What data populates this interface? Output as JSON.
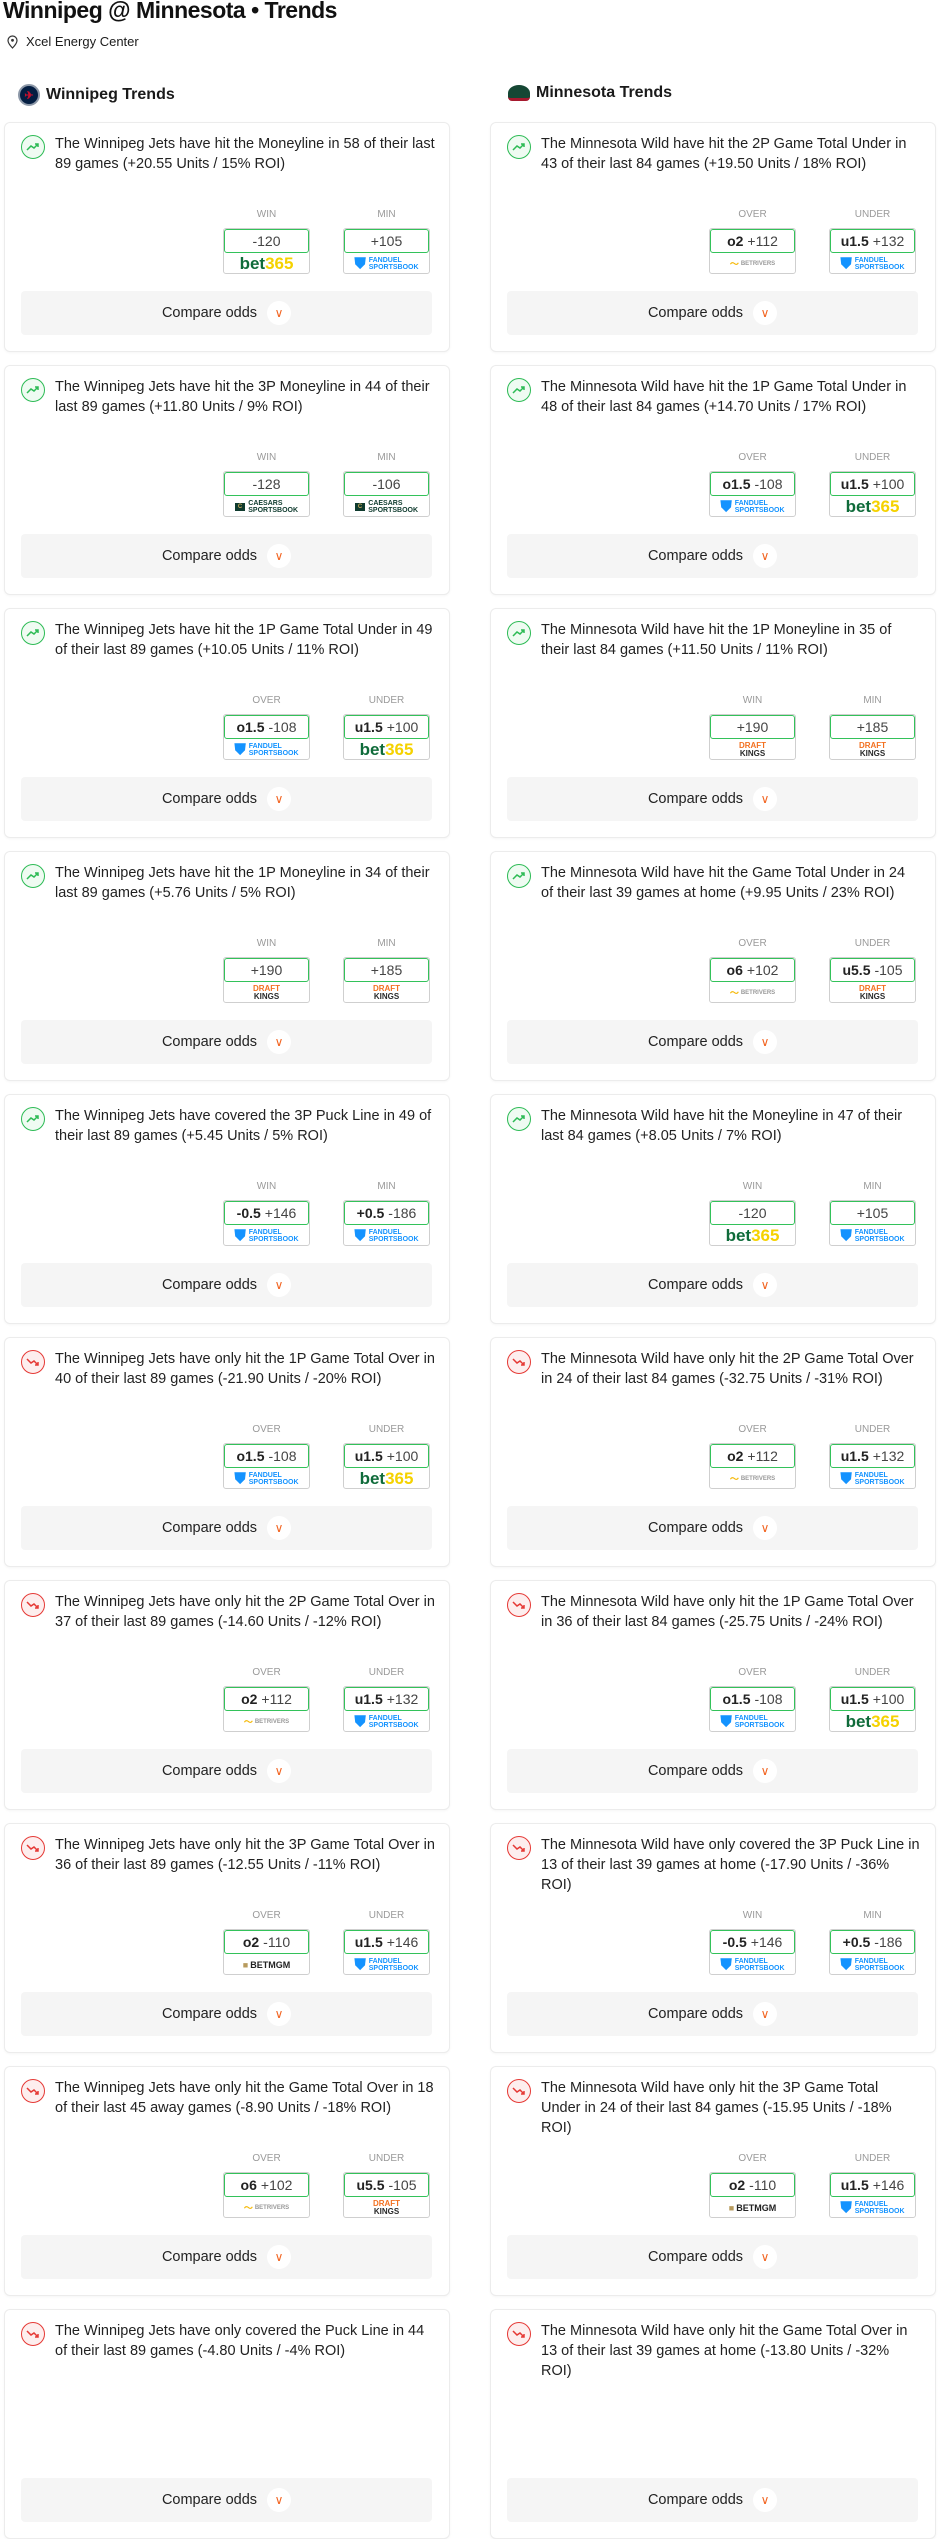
{
  "header": {
    "title": "Winnipeg @ Minnesota • Trends",
    "venue": "Xcel Energy Center"
  },
  "compare_label": "Compare odds",
  "colors": {
    "up": "#2dbb55",
    "down": "#e53935",
    "odds_border": "#33c25a",
    "chevron": "#f26522"
  },
  "columns": [
    {
      "title": "Winnipeg Trends",
      "logo": "winnipeg-jets-logo",
      "cards": [
        {
          "dir": "up",
          "text": "The Winnipeg Jets have hit the Moneyline in 58 of their last 89 games (+20.55 Units / 15% ROI)",
          "labels": [
            "WIN",
            "MIN"
          ],
          "odds": [
            {
              "line": "",
              "price": "-120",
              "book": "bet365"
            },
            {
              "line": "",
              "price": "+105",
              "book": "fanduel"
            }
          ]
        },
        {
          "dir": "up",
          "text": "The Winnipeg Jets have hit the 3P Moneyline in 44 of their last 89 games (+11.80 Units / 9% ROI)",
          "labels": [
            "WIN",
            "MIN"
          ],
          "odds": [
            {
              "line": "",
              "price": "-128",
              "book": "caesars"
            },
            {
              "line": "",
              "price": "-106",
              "book": "caesars"
            }
          ]
        },
        {
          "dir": "up",
          "text": "The Winnipeg Jets have hit the 1P Game Total Under in 49 of their last 89 games (+10.05 Units / 11% ROI)",
          "labels": [
            "OVER",
            "UNDER"
          ],
          "odds": [
            {
              "line": "o1.5",
              "price": "-108",
              "book": "fanduel"
            },
            {
              "line": "u1.5",
              "price": "+100",
              "book": "bet365"
            }
          ]
        },
        {
          "dir": "up",
          "text": "The Winnipeg Jets have hit the 1P Moneyline in 34 of their last 89 games (+5.76 Units / 5% ROI)",
          "labels": [
            "WIN",
            "MIN"
          ],
          "odds": [
            {
              "line": "",
              "price": "+190",
              "book": "draftkings"
            },
            {
              "line": "",
              "price": "+185",
              "book": "draftkings"
            }
          ]
        },
        {
          "dir": "up",
          "text": "The Winnipeg Jets have covered the 3P Puck Line in 49 of their last 89 games (+5.45 Units / 5% ROI)",
          "labels": [
            "WIN",
            "MIN"
          ],
          "odds": [
            {
              "line": "-0.5",
              "price": "+146",
              "book": "fanduel"
            },
            {
              "line": "+0.5",
              "price": "-186",
              "book": "fanduel"
            }
          ]
        },
        {
          "dir": "down",
          "text": "The Winnipeg Jets have only hit the 1P Game Total Over in 40 of their last 89 games (-21.90 Units / -20% ROI)",
          "labels": [
            "OVER",
            "UNDER"
          ],
          "odds": [
            {
              "line": "o1.5",
              "price": "-108",
              "book": "fanduel"
            },
            {
              "line": "u1.5",
              "price": "+100",
              "book": "bet365"
            }
          ]
        },
        {
          "dir": "down",
          "text": "The Winnipeg Jets have only hit the 2P Game Total Over in 37 of their last 89 games (-14.60 Units / -12% ROI)",
          "labels": [
            "OVER",
            "UNDER"
          ],
          "odds": [
            {
              "line": "o2",
              "price": "+112",
              "book": "betrivers"
            },
            {
              "line": "u1.5",
              "price": "+132",
              "book": "fanduel"
            }
          ]
        },
        {
          "dir": "down",
          "text": "The Winnipeg Jets have only hit the 3P Game Total Over in 36 of their last 89 games (-12.55 Units / -11% ROI)",
          "labels": [
            "OVER",
            "UNDER"
          ],
          "odds": [
            {
              "line": "o2",
              "price": "-110",
              "book": "betmgm"
            },
            {
              "line": "u1.5",
              "price": "+146",
              "book": "fanduel"
            }
          ]
        },
        {
          "dir": "down",
          "text": "The Winnipeg Jets have only hit the Game Total Over in 18 of their last 45 away games (-8.90 Units / -18% ROI)",
          "labels": [
            "OVER",
            "UNDER"
          ],
          "odds": [
            {
              "line": "o6",
              "price": "+102",
              "book": "betrivers"
            },
            {
              "line": "u5.5",
              "price": "-105",
              "book": "draftkings"
            }
          ]
        },
        {
          "dir": "down",
          "text": "The Winnipeg Jets have only covered the Puck Line in 44 of their last 89 games (-4.80 Units / -4% ROI)"
        }
      ]
    },
    {
      "title": "Minnesota Trends",
      "logo": "minnesota-wild-logo",
      "cards": [
        {
          "dir": "up",
          "text": "The Minnesota Wild have hit the 2P Game Total Under in 43 of their last 84 games (+19.50 Units / 18% ROI)",
          "labels": [
            "OVER",
            "UNDER"
          ],
          "odds": [
            {
              "line": "o2",
              "price": "+112",
              "book": "betrivers"
            },
            {
              "line": "u1.5",
              "price": "+132",
              "book": "fanduel"
            }
          ]
        },
        {
          "dir": "up",
          "text": "The Minnesota Wild have hit the 1P Game Total Under in 48 of their last 84 games (+14.70 Units / 17% ROI)",
          "labels": [
            "OVER",
            "UNDER"
          ],
          "odds": [
            {
              "line": "o1.5",
              "price": "-108",
              "book": "fanduel"
            },
            {
              "line": "u1.5",
              "price": "+100",
              "book": "bet365"
            }
          ]
        },
        {
          "dir": "up",
          "text": "The Minnesota Wild have hit the 1P Moneyline in 35 of their last 84 games (+11.50 Units / 11% ROI)",
          "labels": [
            "WIN",
            "MIN"
          ],
          "odds": [
            {
              "line": "",
              "price": "+190",
              "book": "draftkings"
            },
            {
              "line": "",
              "price": "+185",
              "book": "draftkings"
            }
          ]
        },
        {
          "dir": "up",
          "text": "The Minnesota Wild have hit the Game Total Under in 24 of their last 39 games at home (+9.95 Units / 23% ROI)",
          "labels": [
            "OVER",
            "UNDER"
          ],
          "odds": [
            {
              "line": "o6",
              "price": "+102",
              "book": "betrivers"
            },
            {
              "line": "u5.5",
              "price": "-105",
              "book": "draftkings"
            }
          ]
        },
        {
          "dir": "up",
          "text": "The Minnesota Wild have hit the Moneyline in 47 of their last 84 games (+8.05 Units / 7% ROI)",
          "labels": [
            "WIN",
            "MIN"
          ],
          "odds": [
            {
              "line": "",
              "price": "-120",
              "book": "bet365"
            },
            {
              "line": "",
              "price": "+105",
              "book": "fanduel"
            }
          ]
        },
        {
          "dir": "down",
          "text": "The Minnesota Wild have only hit the 2P Game Total Over in 24 of their last 84 games (-32.75 Units / -31% ROI)",
          "labels": [
            "OVER",
            "UNDER"
          ],
          "odds": [
            {
              "line": "o2",
              "price": "+112",
              "book": "betrivers"
            },
            {
              "line": "u1.5",
              "price": "+132",
              "book": "fanduel"
            }
          ]
        },
        {
          "dir": "down",
          "text": "The Minnesota Wild have only hit the 1P Game Total Over in 36 of their last 84 games (-25.75 Units / -24% ROI)",
          "labels": [
            "OVER",
            "UNDER"
          ],
          "odds": [
            {
              "line": "o1.5",
              "price": "-108",
              "book": "fanduel"
            },
            {
              "line": "u1.5",
              "price": "+100",
              "book": "bet365"
            }
          ]
        },
        {
          "dir": "down",
          "text": "The Minnesota Wild have only covered the 3P Puck Line in 13 of their last 39 games at home (-17.90 Units / -36% ROI)",
          "labels": [
            "WIN",
            "MIN"
          ],
          "odds": [
            {
              "line": "-0.5",
              "price": "+146",
              "book": "fanduel"
            },
            {
              "line": "+0.5",
              "price": "-186",
              "book": "fanduel"
            }
          ]
        },
        {
          "dir": "down",
          "text": "The Minnesota Wild have only hit the 3P Game Total Under in 24 of their last 84 games (-15.95 Units / -18% ROI)",
          "labels": [
            "OVER",
            "UNDER"
          ],
          "odds": [
            {
              "line": "o2",
              "price": "-110",
              "book": "betmgm"
            },
            {
              "line": "u1.5",
              "price": "+146",
              "book": "fanduel"
            }
          ]
        },
        {
          "dir": "down",
          "text": "The Minnesota Wild have only hit the Game Total Over in 13 of their last 39 games at home (-13.80 Units / -32% ROI)"
        }
      ]
    }
  ],
  "books": {
    "bet365": "bet365",
    "fanduel": "FANDUEL SPORTSBOOK",
    "caesars": "CAESARS SPORTSBOOK",
    "draftkings": "DRAFT KINGS",
    "betrivers": "BETRIVERS",
    "betmgm": "BETMGM"
  }
}
